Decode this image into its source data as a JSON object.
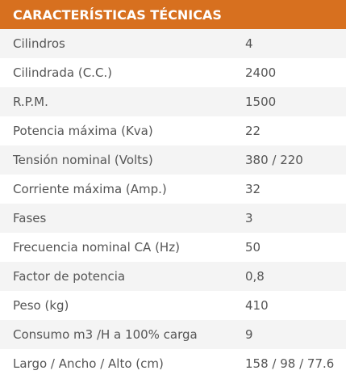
{
  "header": {
    "title": "CARACTERÍSTICAS TÉCNICAS",
    "accent_color": "#d7701f"
  },
  "specs": [
    {
      "label": "Cilindros",
      "value": "4"
    },
    {
      "label": "Cilindrada (C.C.)",
      "value": "2400"
    },
    {
      "label": "R.P.M.",
      "value": "1500"
    },
    {
      "label": "Potencia máxima (Kva)",
      "value": "22"
    },
    {
      "label": "Tensión nominal (Volts)",
      "value": "380 / 220"
    },
    {
      "label": "Corriente máxima (Amp.)",
      "value": "32"
    },
    {
      "label": "Fases",
      "value": "3"
    },
    {
      "label": "Frecuencia nominal CA (Hz)",
      "value": "50"
    },
    {
      "label": "Factor de potencia",
      "value": "0,8"
    },
    {
      "label": "Peso (kg)",
      "value": "410"
    },
    {
      "label": "Consumo m3 /H a 100% carga",
      "value": "9"
    },
    {
      "label": "Largo / Ancho / Alto (cm)",
      "value": "158 / 98 / 77.6"
    }
  ]
}
